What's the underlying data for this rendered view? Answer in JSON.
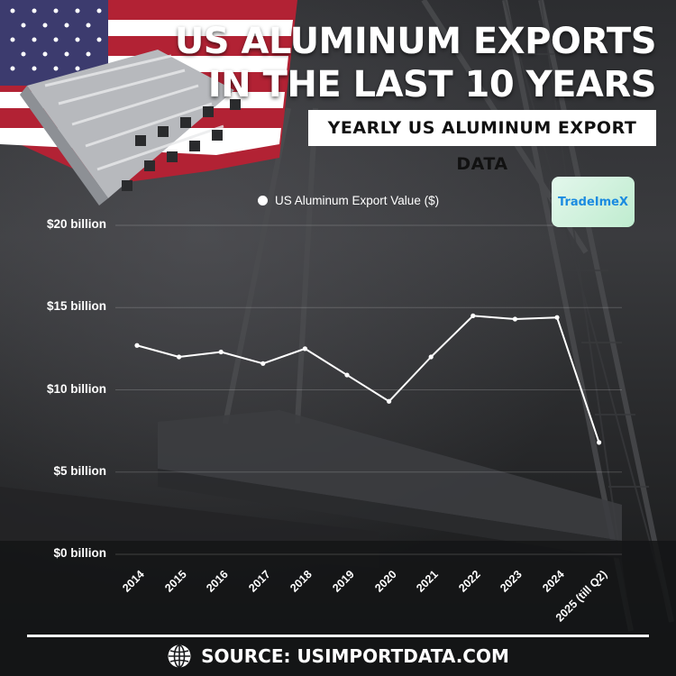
{
  "header": {
    "title": "US ALUMINUM EXPORTS IN THE LAST 10 YEARS",
    "subtitle": "YEARLY US ALUMINUM EXPORT DATA"
  },
  "logo": {
    "text": "TradeImeX"
  },
  "footer": {
    "source": "SOURCE: USIMPORTDATA.COM"
  },
  "icons": {
    "globe": "globe-icon",
    "flag": "us-flag-graphic",
    "aluminum": "aluminum-profiles-graphic"
  },
  "colors": {
    "line": "#ffffff",
    "text": "#ffffff",
    "subtitle_bg": "#ffffff",
    "logo_text": "#1b8be0"
  },
  "chart_data": {
    "type": "line",
    "title": "",
    "xlabel": "",
    "ylabel": "",
    "categories": [
      "2014",
      "2015",
      "2016",
      "2017",
      "2018",
      "2019",
      "2020",
      "2021",
      "2022",
      "2023",
      "2024",
      "2025 (till Q2)"
    ],
    "series": [
      {
        "name": "US Aluminum Export Value ($)",
        "values": [
          12.7,
          12.0,
          12.3,
          11.6,
          12.5,
          10.9,
          9.3,
          12.0,
          14.5,
          14.3,
          14.4,
          6.8
        ]
      }
    ],
    "yticks": [
      "$0 billion",
      "$5 billion",
      "$10 billion",
      "$15 billion",
      "$20 billion"
    ],
    "ylim": [
      0,
      20
    ],
    "grid": true,
    "legend": "top"
  }
}
